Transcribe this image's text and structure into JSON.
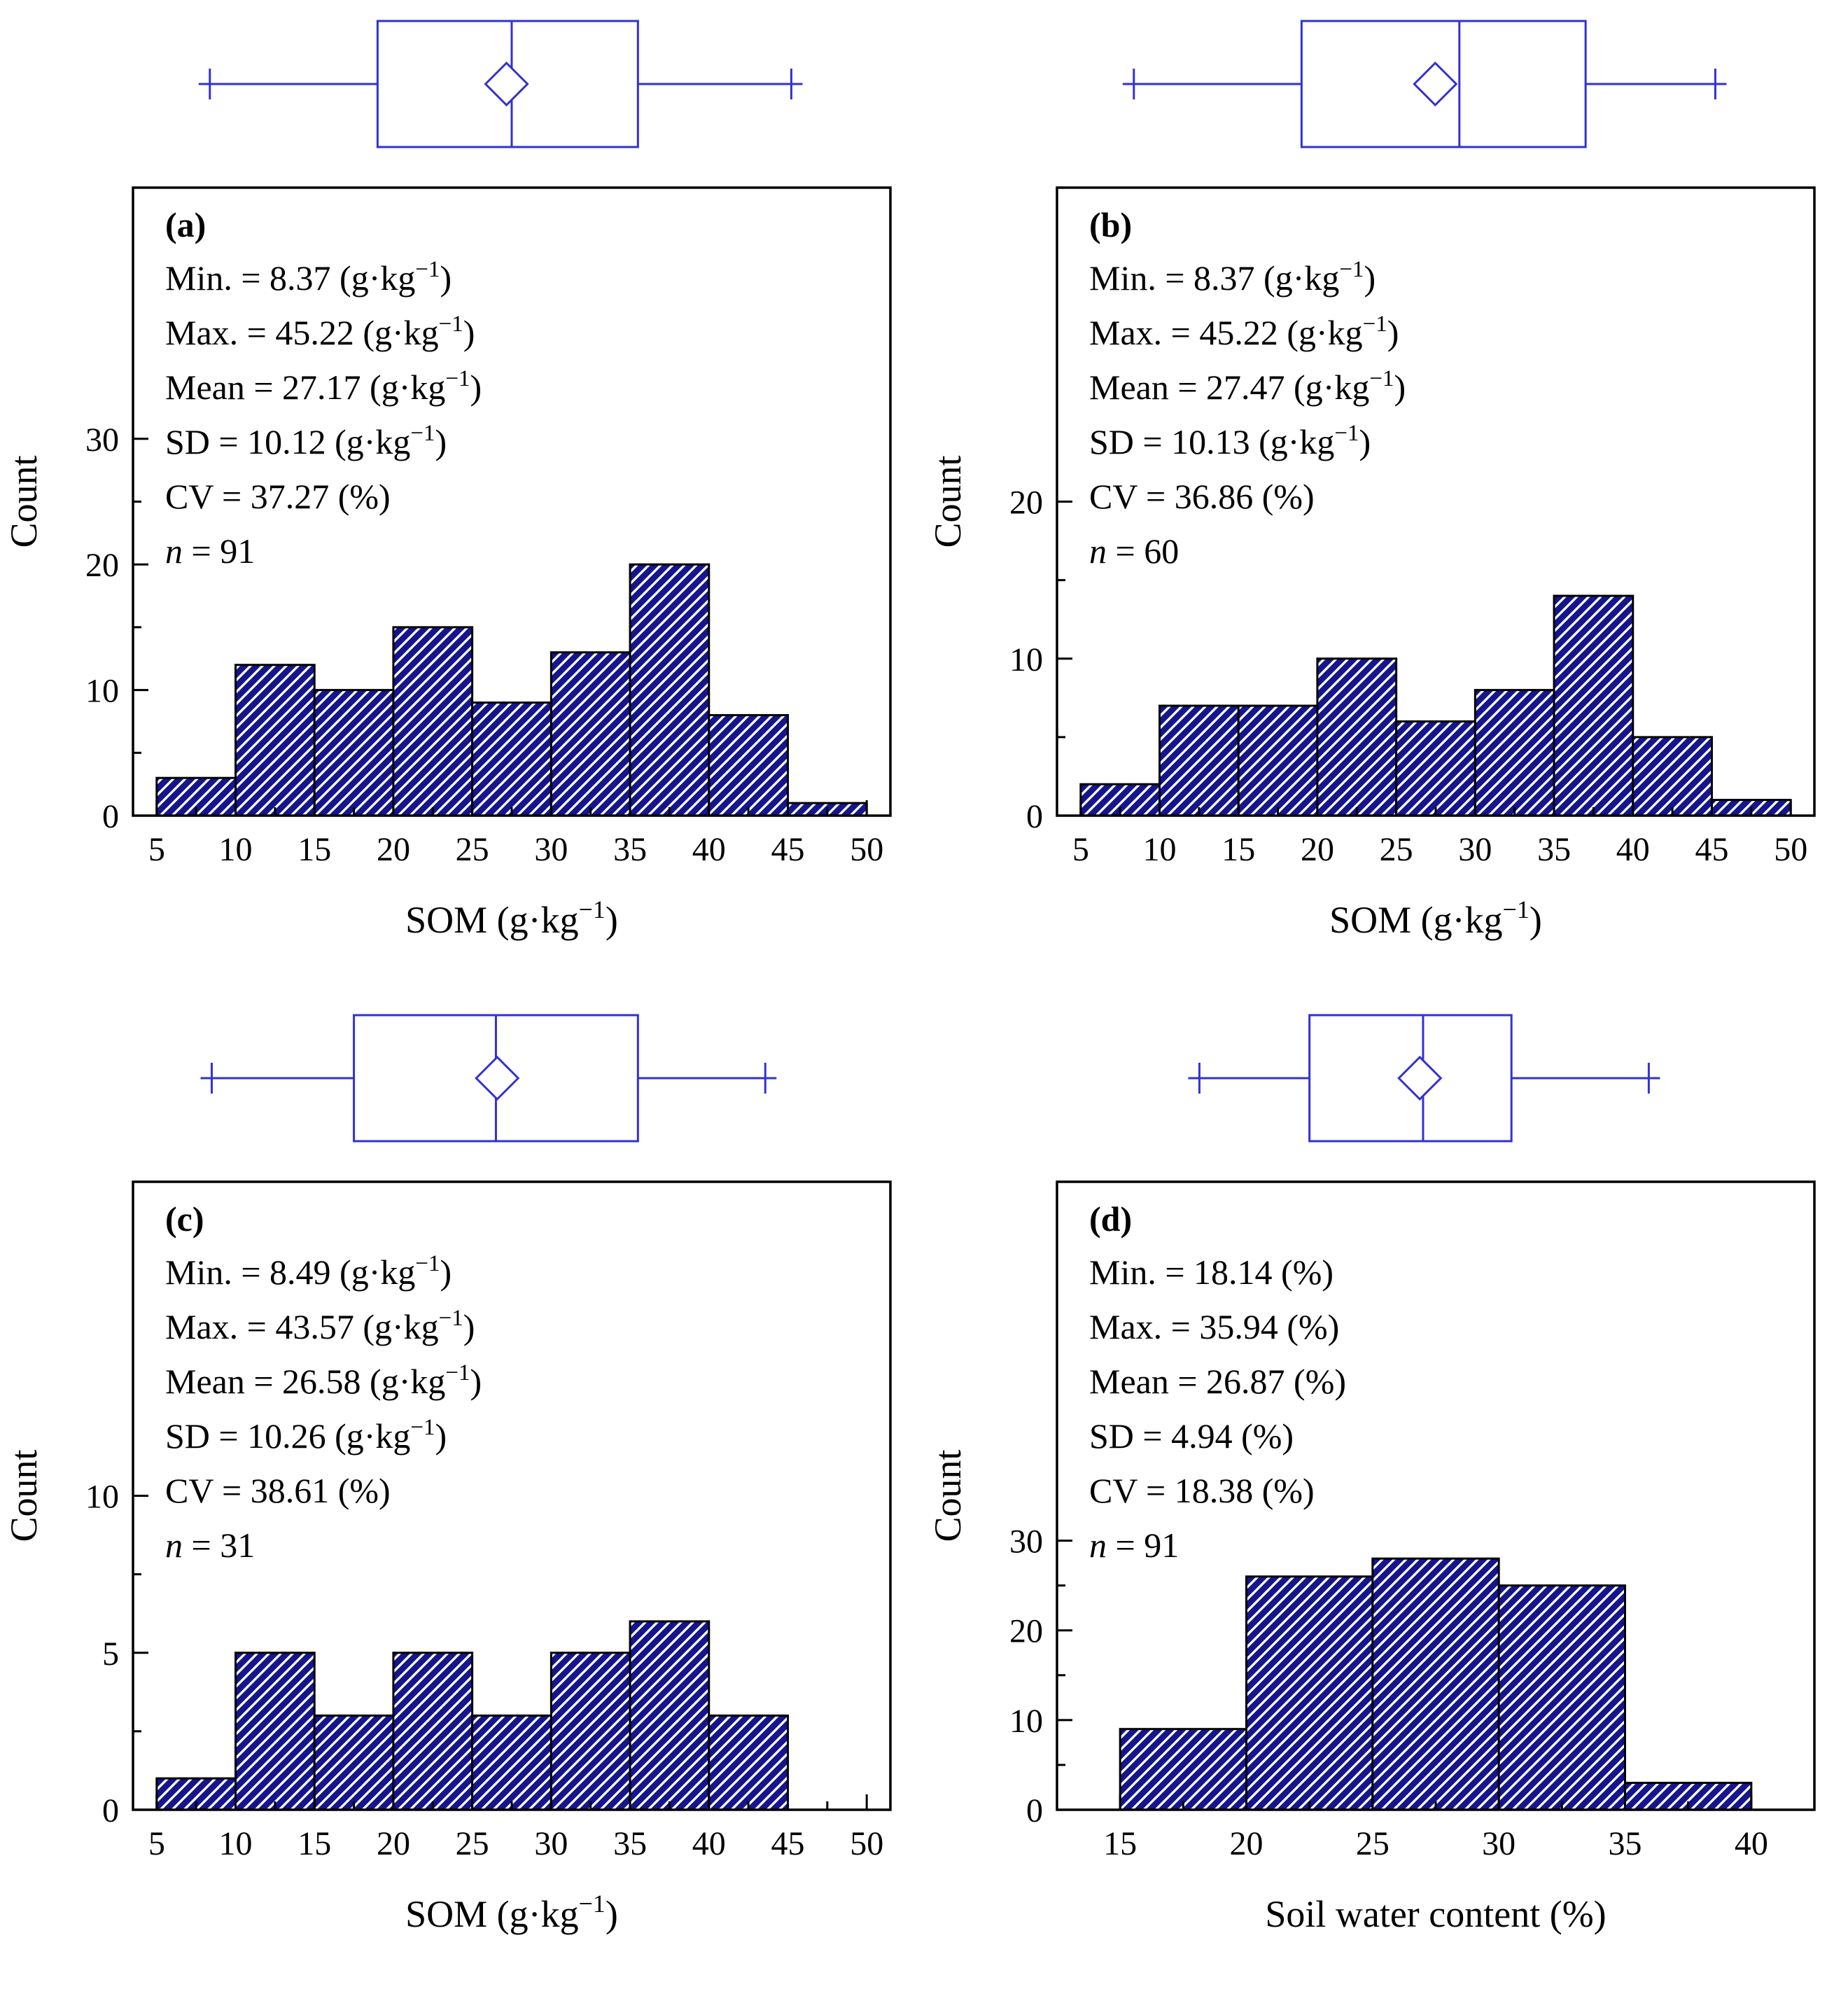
{
  "page": {
    "background": "#ffffff"
  },
  "colors": {
    "bar_fill": "#15158c",
    "bar_hatch": "#ffffff",
    "bar_stroke": "#000000",
    "box_stroke": "#3232d2",
    "frame_stroke": "#000000",
    "text": "#000000"
  },
  "chart_data": [
    {
      "id": "a",
      "type": "bar",
      "subtype": "histogram-with-boxplot",
      "panel_label": "(a)",
      "stats_lines": [
        {
          "text": "Min. = 8.37 (g·kg",
          "sup": "−1",
          "tail": ")"
        },
        {
          "text": "Max. = 45.22 (g·kg",
          "sup": "−1",
          "tail": ")"
        },
        {
          "text": "Mean = 27.17 (g·kg",
          "sup": "−1",
          "tail": ")"
        },
        {
          "text": "SD = 10.12 (g·kg",
          "sup": "−1",
          "tail": ")"
        },
        {
          "text": "CV = 37.27 (%)"
        },
        {
          "italic_head": "n",
          "text": " = 91"
        }
      ],
      "bins": {
        "start": 5,
        "width": 5,
        "counts": [
          3,
          12,
          10,
          15,
          9,
          13,
          20,
          8,
          1
        ]
      },
      "xlim": [
        3.5,
        51.5
      ],
      "ylim": [
        0,
        50
      ],
      "xticks": [
        5,
        10,
        15,
        20,
        25,
        30,
        35,
        40,
        45,
        50
      ],
      "yticks": [
        0,
        10,
        20,
        30
      ],
      "xlabel": {
        "text": "SOM (g·kg",
        "sup": "−1",
        "tail": ")"
      },
      "ylabel": "Count",
      "boxplot": {
        "min": 8.37,
        "q1": 19.0,
        "median": 27.5,
        "q3": 35.5,
        "max": 45.22,
        "mean": 27.17
      }
    },
    {
      "id": "b",
      "type": "bar",
      "subtype": "histogram-with-boxplot",
      "panel_label": "(b)",
      "stats_lines": [
        {
          "text": "Min. = 8.37 (g·kg",
          "sup": "−1",
          "tail": ")"
        },
        {
          "text": "Max. = 45.22 (g·kg",
          "sup": "−1",
          "tail": ")"
        },
        {
          "text": "Mean = 27.47 (g·kg",
          "sup": "−1",
          "tail": ")"
        },
        {
          "text": "SD = 10.13 (g·kg",
          "sup": "−1",
          "tail": ")"
        },
        {
          "text": "CV = 36.86 (%)"
        },
        {
          "italic_head": "n",
          "text": " = 60"
        }
      ],
      "bins": {
        "start": 5,
        "width": 5,
        "counts": [
          2,
          7,
          7,
          10,
          6,
          8,
          14,
          5,
          1
        ]
      },
      "xlim": [
        3.5,
        51.5
      ],
      "ylim": [
        0,
        40
      ],
      "xticks": [
        5,
        10,
        15,
        20,
        25,
        30,
        35,
        40,
        45,
        50
      ],
      "yticks": [
        0,
        10,
        20
      ],
      "xlabel": {
        "text": "SOM (g·kg",
        "sup": "−1",
        "tail": ")"
      },
      "ylabel": "Count",
      "boxplot": {
        "min": 8.37,
        "q1": 19.0,
        "median": 29.0,
        "q3": 37.0,
        "max": 45.22,
        "mean": 27.47
      }
    },
    {
      "id": "c",
      "type": "bar",
      "subtype": "histogram-with-boxplot",
      "panel_label": "(c)",
      "stats_lines": [
        {
          "text": "Min. = 8.49 (g·kg",
          "sup": "−1",
          "tail": ")"
        },
        {
          "text": "Max. = 43.57 (g·kg",
          "sup": "−1",
          "tail": ")"
        },
        {
          "text": "Mean = 26.58 (g·kg",
          "sup": "−1",
          "tail": ")"
        },
        {
          "text": "SD = 10.26 (g·kg",
          "sup": "−1",
          "tail": ")"
        },
        {
          "text": "CV = 38.61 (%)"
        },
        {
          "italic_head": "n",
          "text": " = 31"
        }
      ],
      "bins": {
        "start": 5,
        "width": 5,
        "counts": [
          1,
          5,
          3,
          5,
          3,
          5,
          6,
          3,
          0
        ]
      },
      "xlim": [
        3.5,
        51.5
      ],
      "ylim": [
        0,
        20
      ],
      "xticks": [
        5,
        10,
        15,
        20,
        25,
        30,
        35,
        40,
        45,
        50
      ],
      "yticks": [
        0,
        5,
        10
      ],
      "xlabel": {
        "text": "SOM (g·kg",
        "sup": "−1",
        "tail": ")"
      },
      "ylabel": "Count",
      "boxplot": {
        "min": 8.49,
        "q1": 17.5,
        "median": 26.5,
        "q3": 35.5,
        "max": 43.57,
        "mean": 26.58
      }
    },
    {
      "id": "d",
      "type": "bar",
      "subtype": "histogram-with-boxplot",
      "panel_label": "(d)",
      "stats_lines": [
        {
          "text": "Min. = 18.14 (%)"
        },
        {
          "text": "Max. = 35.94 (%)"
        },
        {
          "text": "Mean = 26.87 (%)"
        },
        {
          "text": "SD = 4.94 (%)"
        },
        {
          "text": "CV = 18.38 (%)"
        },
        {
          "italic_head": "n",
          "text": " = 91"
        }
      ],
      "bins": {
        "start": 15,
        "width": 5,
        "counts": [
          9,
          26,
          28,
          25,
          3
        ]
      },
      "xlim": [
        12.5,
        42.5
      ],
      "ylim": [
        0,
        70
      ],
      "xticks": [
        15,
        20,
        25,
        30,
        35,
        40
      ],
      "yticks": [
        0,
        10,
        20,
        30
      ],
      "xlabel": {
        "text": "Soil water content (%)"
      },
      "ylabel": "Count",
      "boxplot": {
        "min": 18.14,
        "q1": 22.5,
        "median": 27.0,
        "q3": 30.5,
        "max": 35.94,
        "mean": 26.87
      }
    }
  ]
}
